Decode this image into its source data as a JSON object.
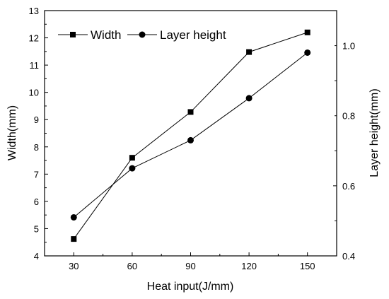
{
  "chart_data": {
    "type": "line",
    "title": "",
    "xlabel": "Heat input(J/mm)",
    "ylabel": "Width(mm)",
    "y2label": "Layer height(mm)",
    "x": [
      30,
      60,
      90,
      120,
      150
    ],
    "xticks": [
      "30",
      "60",
      "90",
      "120",
      "150"
    ],
    "yticks": [
      "4",
      "5",
      "6",
      "7",
      "8",
      "9",
      "10",
      "11",
      "12",
      "13"
    ],
    "y2ticks": [
      "0.4",
      "0.6",
      "0.8",
      "1.0"
    ],
    "ylim": [
      4,
      13
    ],
    "y2lim": [
      0.4,
      1.1
    ],
    "xlim": [
      15,
      165
    ],
    "grid": false,
    "legend_position": "top-left",
    "series": [
      {
        "name": "Width",
        "axis": "left",
        "marker": "square",
        "values": [
          4.62,
          7.6,
          9.28,
          11.48,
          12.2
        ]
      },
      {
        "name": "Layer height",
        "axis": "right",
        "marker": "circle",
        "values": [
          0.51,
          0.65,
          0.73,
          0.85,
          0.98
        ]
      }
    ],
    "colors": {
      "line": "#000000",
      "marker": "#000000"
    }
  }
}
